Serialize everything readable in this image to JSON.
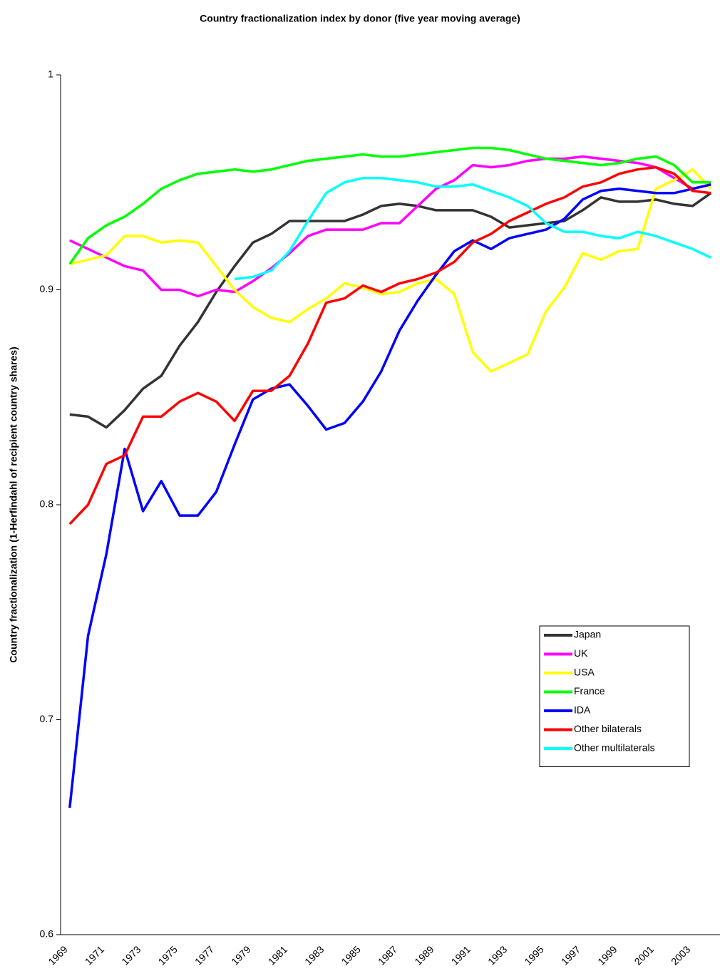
{
  "chart_data": {
    "type": "line",
    "title": "Country fractionalization index by donor (five year moving average)",
    "y_label": "Country fractionalization (1-Herfindahl of recipient country shares)",
    "categories": [
      "1969",
      null,
      "1971",
      null,
      "1973",
      null,
      "1975",
      null,
      "1977",
      null,
      "1979",
      null,
      "1981",
      null,
      "1983",
      null,
      "1985",
      null,
      "1987",
      null,
      "1989",
      null,
      "1991",
      null,
      "1993",
      null,
      "1995",
      null,
      "1997",
      null,
      "1999",
      null,
      "2001",
      null,
      "2003",
      null
    ],
    "ylim": [
      0.6,
      1
    ],
    "yticks": [
      0.6,
      0.7,
      0.8,
      0.9,
      1
    ],
    "grid": false,
    "legend": "right",
    "series": [
      {
        "name": "Japan",
        "color": "#333333",
        "values": [
          0.842,
          0.841,
          0.836,
          0.844,
          0.854,
          0.86,
          0.874,
          0.885,
          0.899,
          0.911,
          0.922,
          0.926,
          0.932,
          0.932,
          0.932,
          0.932,
          0.935,
          0.939,
          0.94,
          0.939,
          0.937,
          0.937,
          0.937,
          0.934,
          0.929,
          0.93,
          0.931,
          0.932,
          0.937,
          0.943,
          0.941,
          0.941,
          0.942,
          0.94,
          0.939,
          0.945
        ]
      },
      {
        "name": "UK",
        "color": "#ff00ff",
        "values": [
          0.923,
          0.919,
          0.915,
          0.911,
          0.909,
          0.9,
          0.9,
          0.897,
          0.9,
          0.899,
          0.904,
          0.91,
          0.917,
          0.925,
          0.928,
          0.928,
          0.928,
          0.931,
          0.931,
          0.939,
          0.947,
          0.951,
          0.958,
          0.957,
          0.958,
          0.96,
          0.961,
          0.961,
          0.962,
          0.961,
          0.96,
          0.959,
          0.957,
          0.952,
          0.947,
          0.949
        ]
      },
      {
        "name": "USA",
        "color": "#ffff00",
        "values": [
          0.912,
          0.914,
          0.916,
          0.925,
          0.925,
          0.922,
          0.923,
          0.922,
          0.911,
          0.9,
          0.892,
          0.887,
          0.885,
          0.891,
          0.896,
          0.903,
          0.901,
          0.898,
          0.899,
          0.903,
          0.905,
          0.898,
          0.871,
          0.862,
          0.866,
          0.87,
          0.89,
          0.901,
          0.917,
          0.914,
          0.918,
          0.919,
          0.947,
          0.951,
          0.956,
          0.947
        ]
      },
      {
        "name": "France",
        "color": "#00ff00",
        "values": [
          0.912,
          0.924,
          0.93,
          0.934,
          0.94,
          0.947,
          0.951,
          0.954,
          0.955,
          0.956,
          0.955,
          0.956,
          0.958,
          0.96,
          0.961,
          0.962,
          0.963,
          0.962,
          0.962,
          0.963,
          0.964,
          0.965,
          0.966,
          0.966,
          0.965,
          0.963,
          0.961,
          0.96,
          0.959,
          0.958,
          0.959,
          0.961,
          0.962,
          0.958,
          0.95,
          0.95
        ]
      },
      {
        "name": "IDA",
        "color": "#0000ff",
        "values": [
          0.659,
          0.739,
          0.777,
          0.826,
          0.797,
          0.811,
          0.795,
          0.795,
          0.806,
          0.828,
          0.849,
          0.854,
          0.856,
          0.846,
          0.835,
          0.838,
          0.848,
          0.862,
          0.881,
          0.895,
          0.907,
          0.918,
          0.923,
          0.919,
          0.924,
          0.926,
          0.928,
          0.933,
          0.942,
          0.946,
          0.947,
          0.946,
          0.945,
          0.945,
          0.947,
          0.949
        ]
      },
      {
        "name": "Other bilaterals",
        "color": "#ff0000",
        "values": [
          0.791,
          0.8,
          0.819,
          0.823,
          0.841,
          0.841,
          0.848,
          0.852,
          0.848,
          0.839,
          0.853,
          0.853,
          0.86,
          0.875,
          0.894,
          0.896,
          0.902,
          0.899,
          0.903,
          0.905,
          0.908,
          0.913,
          0.922,
          0.926,
          0.932,
          0.936,
          0.94,
          0.943,
          0.948,
          0.95,
          0.954,
          0.956,
          0.957,
          0.954,
          0.946,
          0.945
        ]
      },
      {
        "name": "Other multilaterals",
        "color": "#00ffff",
        "values": [
          null,
          null,
          null,
          null,
          null,
          null,
          null,
          null,
          null,
          0.905,
          0.906,
          0.909,
          0.918,
          0.932,
          0.945,
          0.95,
          0.952,
          0.952,
          0.951,
          0.95,
          0.948,
          0.948,
          0.949,
          0.946,
          0.943,
          0.939,
          0.931,
          0.927,
          0.927,
          0.925,
          0.924,
          0.927,
          0.925,
          0.922,
          0.919,
          0.915
        ]
      }
    ]
  }
}
